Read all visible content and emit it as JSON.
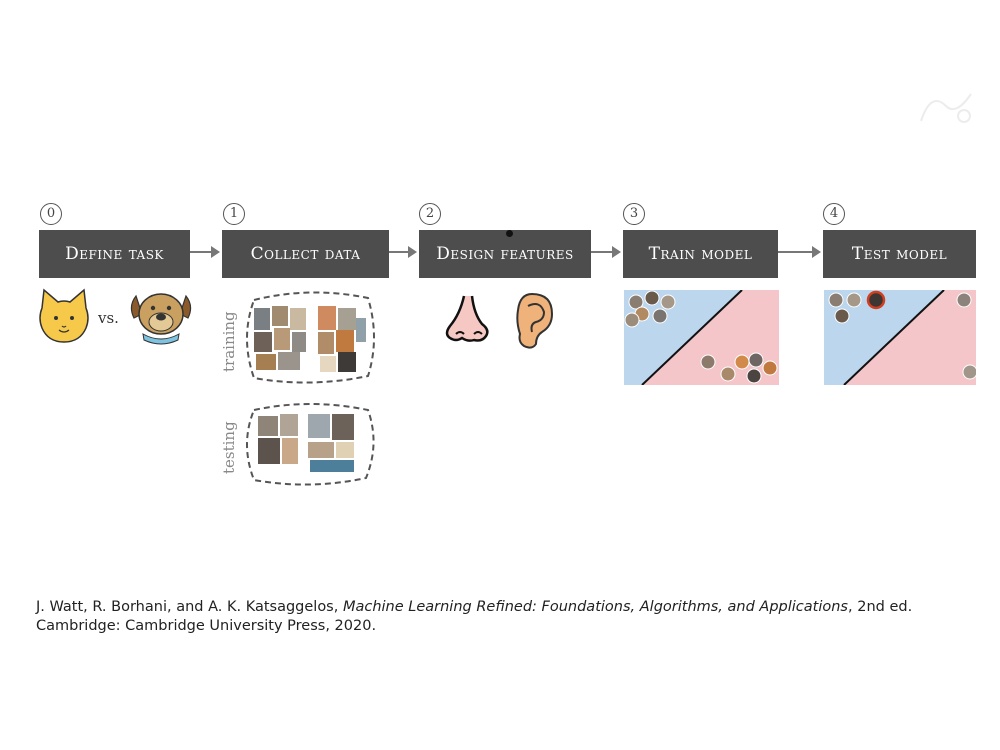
{
  "steps": [
    {
      "number": "0",
      "label": "Define task"
    },
    {
      "number": "1",
      "label": "Collect data"
    },
    {
      "number": "2",
      "label": "Design features"
    },
    {
      "number": "3",
      "label": "Train model"
    },
    {
      "number": "4",
      "label": "Test model"
    }
  ],
  "task": {
    "separator": "vs."
  },
  "data_sets": {
    "training_label": "training",
    "testing_label": "testing"
  },
  "citation": {
    "authors": "J. Watt, R. Borhani, and A. K. Katsaggelos, ",
    "title": "Machine Learning Refined: Foundations, Algorithms, and Applications",
    "rest": ", 2nd ed. Cambridge: Cambridge University Press, 2020."
  },
  "icons": [
    "cat-icon",
    "dog-icon",
    "nose-icon",
    "ear-icon"
  ],
  "colors": {
    "step_box": "#4d4d4d",
    "class_blue": "#bcd6ee",
    "class_pink": "#f4c5c9",
    "arrow": "#777777"
  }
}
